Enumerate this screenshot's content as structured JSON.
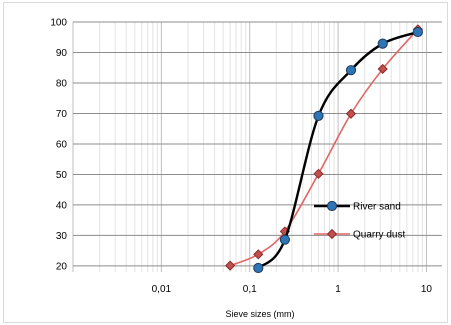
{
  "chart_data": {
    "type": "line",
    "xscale": "log",
    "xlabel": "Sieve sizes (mm)",
    "ylabel": "",
    "xlim": [
      0.001,
      15
    ],
    "ylim": [
      18,
      100
    ],
    "x_ticks": [
      {
        "value": 0.01,
        "label": "0,01"
      },
      {
        "value": 0.1,
        "label": "0,1"
      },
      {
        "value": 1,
        "label": "1"
      },
      {
        "value": 10,
        "label": "10"
      }
    ],
    "y_ticks": [
      {
        "value": 20,
        "label": "20"
      },
      {
        "value": 30,
        "label": "30"
      },
      {
        "value": 40,
        "label": "40"
      },
      {
        "value": 50,
        "label": "50"
      },
      {
        "value": 60,
        "label": "60"
      },
      {
        "value": 70,
        "label": "70"
      },
      {
        "value": 80,
        "label": "80"
      },
      {
        "value": 90,
        "label": "90"
      },
      {
        "value": 100,
        "label": "100"
      }
    ],
    "grid": true,
    "legend_position": "right",
    "series": [
      {
        "name": "River sand",
        "color": "#000000",
        "marker": "circle",
        "marker_color": "#2e75b6",
        "x": [
          0.125,
          0.25,
          0.6,
          1.4,
          3.2,
          8.0
        ],
        "y": [
          19.3,
          28.6,
          69.2,
          84.2,
          92.9,
          96.7
        ]
      },
      {
        "name": "Quarry dust",
        "color": "#e06666",
        "marker": "diamond",
        "marker_color": "#c0504d",
        "x": [
          0.06,
          0.125,
          0.25,
          0.6,
          1.4,
          3.2,
          8.0
        ],
        "y": [
          20.1,
          23.8,
          31.3,
          50.2,
          69.9,
          84.6,
          97.6
        ]
      }
    ]
  }
}
